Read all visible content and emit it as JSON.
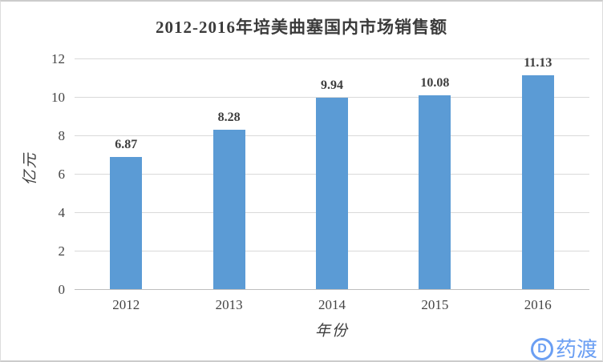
{
  "chart_data": {
    "type": "bar",
    "title": "2012-2016年培美曲塞国内市场销售额",
    "categories": [
      "2012",
      "2013",
      "2014",
      "2015",
      "2016"
    ],
    "values": [
      6.87,
      8.28,
      9.94,
      10.08,
      11.13
    ],
    "data_labels": [
      "6.87",
      "8.28",
      "9.94",
      "10.08",
      "11.13"
    ],
    "xlabel": "年份",
    "ylabel": "亿元",
    "ylim": [
      0,
      12
    ],
    "yticks": [
      0,
      2,
      4,
      6,
      8,
      10,
      12
    ],
    "grid": "horizontal",
    "legend": "none",
    "bar_color": "#5b9bd5",
    "gridline_color": "#d9d9d9",
    "axis_line_color": "#bfbfbf",
    "text_color": "#3d3d3d"
  },
  "watermark": {
    "icon_letter": "D",
    "text": "药渡",
    "color": "#6b9ff3"
  }
}
